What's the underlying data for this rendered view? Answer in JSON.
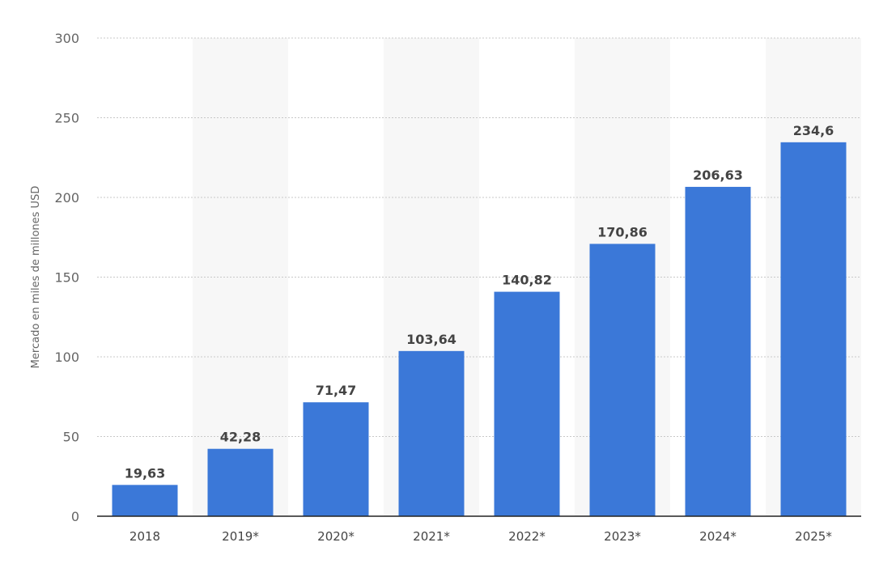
{
  "chart_data": {
    "type": "bar",
    "categories": [
      "2018",
      "2019*",
      "2020*",
      "2021*",
      "2022*",
      "2023*",
      "2024*",
      "2025*"
    ],
    "values": [
      19.63,
      42.28,
      71.47,
      103.64,
      140.82,
      170.86,
      206.63,
      234.6
    ],
    "value_labels": [
      "19,63",
      "42,28",
      "71,47",
      "103,64",
      "140,82",
      "170,86",
      "206,63",
      "234,6"
    ],
    "title": "",
    "xlabel": "",
    "ylabel": "Mercado en miles de millones USD",
    "ylim": [
      0,
      300
    ],
    "yticks": [
      0,
      50,
      100,
      150,
      200,
      250,
      300
    ],
    "ytick_labels": [
      "0",
      "50",
      "100",
      "150",
      "200",
      "250",
      "300"
    ],
    "grid": true,
    "alternate_column_shading": true,
    "colors": {
      "bar": "#3b78d8",
      "grid": "#c8c8c8",
      "shading": "#f7f7f7",
      "axis": "#222222"
    }
  }
}
